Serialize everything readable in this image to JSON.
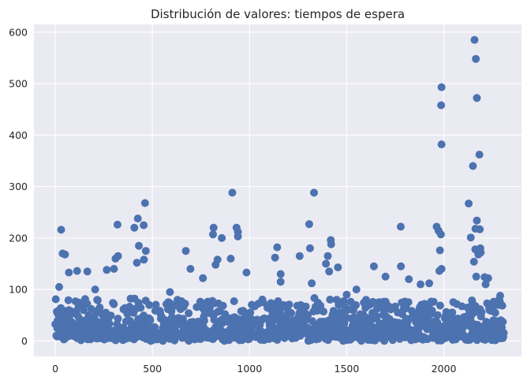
{
  "chart_data": {
    "type": "scatter",
    "title": "Distribución de valores: tiempos de espera",
    "xlabel": "",
    "ylabel": "",
    "xlim": [
      -110,
      2400
    ],
    "ylim": [
      -30,
      615
    ],
    "x_ticks": [
      0,
      500,
      1000,
      1500,
      2000
    ],
    "y_ticks": [
      0,
      100,
      200,
      300,
      400,
      500,
      600
    ],
    "x_tick_labels": [
      "0",
      "500",
      "1000",
      "1500",
      "2000"
    ],
    "y_tick_labels": [
      "0",
      "100",
      "200",
      "300",
      "400",
      "500",
      "600"
    ],
    "grid": true,
    "background": "#eaeaf2",
    "grid_color": "#ffffff",
    "point_color": "#4c72b0",
    "series": [
      {
        "name": "",
        "points": [
          [
            2158,
            585
          ],
          [
            2165,
            548
          ],
          [
            1988,
            493
          ],
          [
            2170,
            472
          ],
          [
            1986,
            458
          ],
          [
            1988,
            382
          ],
          [
            2183,
            362
          ],
          [
            2150,
            340
          ],
          [
            911,
            288
          ],
          [
            1332,
            288
          ],
          [
            462,
            268
          ],
          [
            2128,
            267
          ],
          [
            2170,
            234
          ],
          [
            425,
            238
          ],
          [
            320,
            226
          ],
          [
            1307,
            227
          ],
          [
            455,
            225
          ],
          [
            407,
            220
          ],
          [
            933,
            220
          ],
          [
            815,
            220
          ],
          [
            1778,
            222
          ],
          [
            1963,
            222
          ],
          [
            2185,
            217
          ],
          [
            2163,
            218
          ],
          [
            30,
            216
          ],
          [
            1973,
            214
          ],
          [
            940,
            212
          ],
          [
            812,
            207
          ],
          [
            1985,
            207
          ],
          [
            2139,
            201
          ],
          [
            940,
            203
          ],
          [
            857,
            200
          ],
          [
            1418,
            196
          ],
          [
            430,
            185
          ],
          [
            1420,
            188
          ],
          [
            1311,
            180
          ],
          [
            1142,
            182
          ],
          [
            2188,
            180
          ],
          [
            2162,
            178
          ],
          [
            466,
            175
          ],
          [
            672,
            175
          ],
          [
            1980,
            176
          ],
          [
            2190,
            172
          ],
          [
            38,
            170
          ],
          [
            50,
            168
          ],
          [
            323,
            165
          ],
          [
            1403,
            165
          ],
          [
            2178,
            168
          ],
          [
            835,
            158
          ],
          [
            420,
            152
          ],
          [
            310,
            160
          ],
          [
            456,
            158
          ],
          [
            903,
            160
          ],
          [
            1131,
            162
          ],
          [
            1258,
            165
          ],
          [
            2155,
            154
          ],
          [
            825,
            148
          ],
          [
            1393,
            150
          ],
          [
            1640,
            145
          ],
          [
            1779,
            145
          ],
          [
            302,
            140
          ],
          [
            1455,
            143
          ],
          [
            1988,
            140
          ],
          [
            1977,
            136
          ],
          [
            112,
            136
          ],
          [
            165,
            135
          ],
          [
            70,
            133
          ],
          [
            265,
            138
          ],
          [
            696,
            140
          ],
          [
            984,
            133
          ],
          [
            1410,
            135
          ],
          [
            1160,
            130
          ],
          [
            2167,
            125
          ],
          [
            2210,
            124
          ],
          [
            2228,
            122
          ],
          [
            760,
            122
          ],
          [
            1820,
            120
          ],
          [
            1925,
            112
          ],
          [
            1700,
            125
          ],
          [
            1880,
            110
          ],
          [
            2215,
            110
          ],
          [
            1160,
            115
          ],
          [
            1320,
            112
          ],
          [
            590,
            95
          ],
          [
            1550,
            100
          ],
          [
            20,
            105
          ],
          [
            205,
            100
          ],
          [
            1500,
            90
          ],
          [
            2290,
            88
          ],
          [
            2235,
            60
          ],
          [
            1600,
            80
          ],
          [
            1070,
            75
          ],
          [
            1700,
            70
          ]
        ]
      }
    ]
  }
}
